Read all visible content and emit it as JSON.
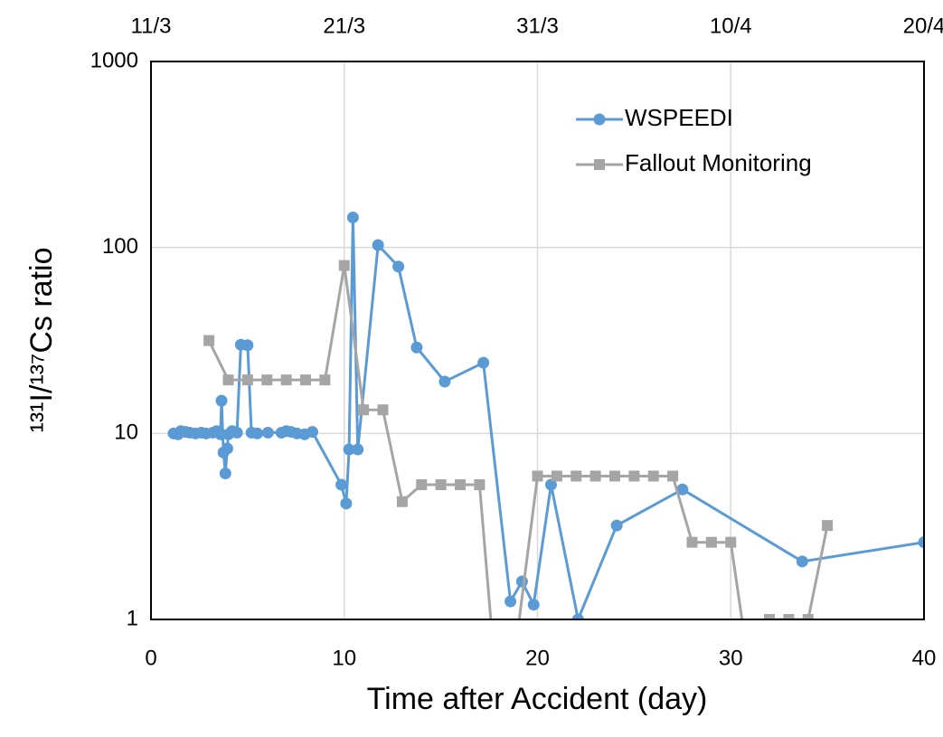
{
  "chart_data": {
    "type": "line",
    "xlabel": "Time after Accident (day)",
    "ylabel": "¹³¹I/¹³⁷Cs ratio",
    "xlim": [
      0,
      40
    ],
    "xticks": [
      0,
      10,
      20,
      30,
      40
    ],
    "x2ticks": [
      {
        "value": 0,
        "label": "11/3"
      },
      {
        "value": 10,
        "label": "21/3"
      },
      {
        "value": 20,
        "label": "31/3"
      },
      {
        "value": 30,
        "label": "10/4"
      },
      {
        "value": 40,
        "label": "20/4"
      }
    ],
    "ylim": [
      1,
      1000
    ],
    "yticks": [
      1,
      10,
      100,
      1000
    ],
    "log_y": true,
    "grid": true,
    "legend": "upper right",
    "series": [
      {
        "name": "WSPEEDI",
        "color": "#5b9bd5",
        "marker": "circle",
        "x": [
          1.17,
          1.4,
          1.55,
          1.8,
          2.0,
          2.3,
          2.6,
          2.85,
          3.2,
          3.4,
          3.6,
          3.65,
          3.75,
          3.85,
          3.95,
          4.0,
          4.2,
          4.45,
          4.65,
          5.0,
          5.2,
          5.5,
          6.05,
          6.75,
          7.0,
          7.25,
          7.55,
          7.95,
          8.35,
          9.85,
          10.1,
          10.25,
          10.45,
          10.7,
          11.75,
          12.8,
          13.75,
          15.2,
          17.2,
          18.6,
          19.2,
          19.8,
          20.7,
          22.1,
          24.1,
          27.5,
          33.7,
          40
        ],
        "values": [
          10,
          9.9,
          10.3,
          10.2,
          10.1,
          10,
          10.1,
          10,
          10.1,
          10.3,
          9.9,
          15,
          7.9,
          6.1,
          8.3,
          9.9,
          10.3,
          10.1,
          30,
          29.8,
          10.1,
          10,
          10.1,
          10.1,
          10.3,
          10.2,
          10,
          9.9,
          10.2,
          5.3,
          4.2,
          8.2,
          145,
          8.2,
          103,
          79,
          29,
          19,
          24,
          1.25,
          1.6,
          1.2,
          5.3,
          1.0,
          3.2,
          5.0,
          2.05,
          2.6
        ]
      },
      {
        "name": "Fallout Monitoring",
        "color": "#a5a5a5",
        "marker": "square",
        "x": [
          3,
          4,
          5,
          6,
          7,
          8,
          9,
          10,
          11,
          12,
          13,
          14,
          15,
          16,
          17,
          18,
          19,
          20,
          21,
          22,
          23,
          24,
          25,
          26,
          27,
          28,
          29,
          30,
          31,
          32,
          33,
          34,
          35
        ],
        "values": [
          31.6,
          19.4,
          19.4,
          19.4,
          19.4,
          19.4,
          19.4,
          80,
          13.4,
          13.4,
          4.3,
          5.3,
          5.3,
          5.3,
          5.3,
          0.3,
          0.9,
          5.9,
          5.9,
          5.9,
          5.9,
          5.9,
          5.9,
          5.9,
          5.9,
          2.6,
          2.6,
          2.6,
          0.5,
          1.0,
          1.0,
          1.0,
          3.2
        ]
      }
    ]
  }
}
